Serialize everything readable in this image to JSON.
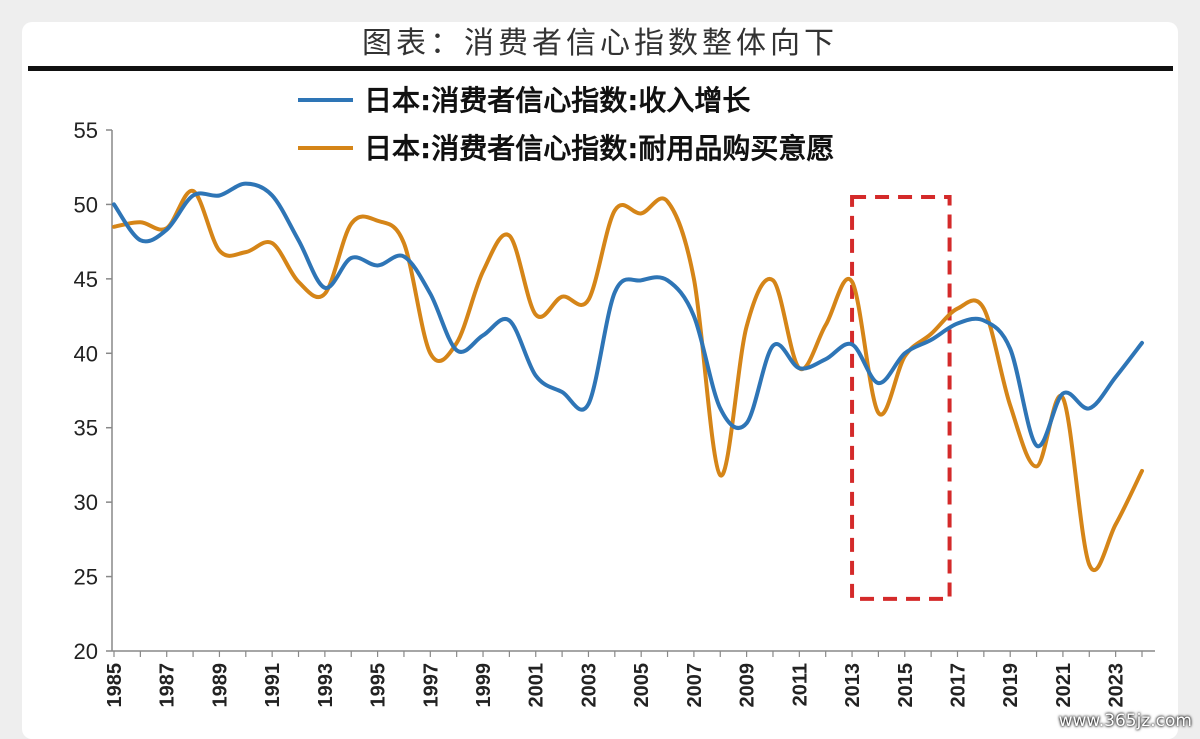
{
  "header": {
    "title": "图表：消费者信心指数整体向下"
  },
  "watermark": "www.365jz.com",
  "colors": {
    "income": "#2e75b6",
    "durables": "#d58518",
    "highlight": "#d42a2a"
  },
  "chart_data": {
    "type": "line",
    "ylim": [
      20,
      55
    ],
    "yticks": [
      20,
      25,
      30,
      35,
      40,
      45,
      50,
      55
    ],
    "xlim": [
      1985,
      2024
    ],
    "xticks": [
      "1985",
      "1987",
      "1989",
      "1991",
      "1993",
      "1995",
      "1997",
      "1999",
      "2001",
      "2003",
      "2005",
      "2007",
      "2009",
      "2011",
      "2013",
      "2015",
      "2017",
      "2019",
      "2021",
      "2023"
    ],
    "legend_position": "top-left",
    "grid": false,
    "highlight_box": {
      "x": [
        2013,
        2016.7
      ],
      "y": [
        23.5,
        50.5
      ]
    },
    "series": [
      {
        "name": "日本:消费者信心指数:收入增长",
        "color": "#2e75b6",
        "x": [
          1985,
          1986,
          1987,
          1988,
          1989,
          1990,
          1991,
          1992,
          1993,
          1994,
          1995,
          1996,
          1997,
          1998,
          1999,
          2000,
          2001,
          2002,
          2003,
          2004,
          2005,
          2006,
          2007,
          2008,
          2009,
          2010,
          2011,
          2012,
          2013,
          2014,
          2015,
          2016,
          2017,
          2018,
          2019,
          2020,
          2021,
          2022,
          2023,
          2024
        ],
        "y": [
          50,
          47.6,
          48.3,
          50.6,
          50.6,
          51.4,
          50.6,
          47.6,
          44.4,
          46.4,
          45.9,
          46.5,
          44,
          40.2,
          41.2,
          42.2,
          38.5,
          37.4,
          36.6,
          44.1,
          44.9,
          44.9,
          42.5,
          36.3,
          35.3,
          40.5,
          39,
          39.6,
          40.6,
          38,
          40,
          40.9,
          42,
          42.2,
          40.3,
          33.8,
          37.3,
          36.3,
          38.4,
          40.7
        ]
      },
      {
        "name": "日本:消费者信心指数:耐用品购买意愿",
        "color": "#d58518",
        "x": [
          1985,
          1986,
          1987,
          1988,
          1989,
          1990,
          1991,
          1992,
          1993,
          1994,
          1995,
          1996,
          1997,
          1998,
          1999,
          2000,
          2001,
          2002,
          2003,
          2004,
          2005,
          2006,
          2007,
          2008,
          2009,
          2010,
          2011,
          2012,
          2013,
          2014,
          2015,
          2016,
          2017,
          2018,
          2019,
          2020,
          2021,
          2022,
          2023,
          2024
        ],
        "y": [
          48.5,
          48.8,
          48.4,
          50.9,
          46.9,
          46.8,
          47.4,
          44.8,
          44,
          48.7,
          48.9,
          47.4,
          40,
          40.7,
          45.5,
          47.9,
          42.6,
          43.8,
          43.6,
          49.6,
          49.4,
          50.2,
          45,
          31.8,
          41.8,
          44.9,
          39,
          41.9,
          44.8,
          36,
          39.8,
          41.3,
          43,
          43,
          36.5,
          32.4,
          37,
          25.8,
          28.5,
          32.1
        ]
      }
    ]
  }
}
